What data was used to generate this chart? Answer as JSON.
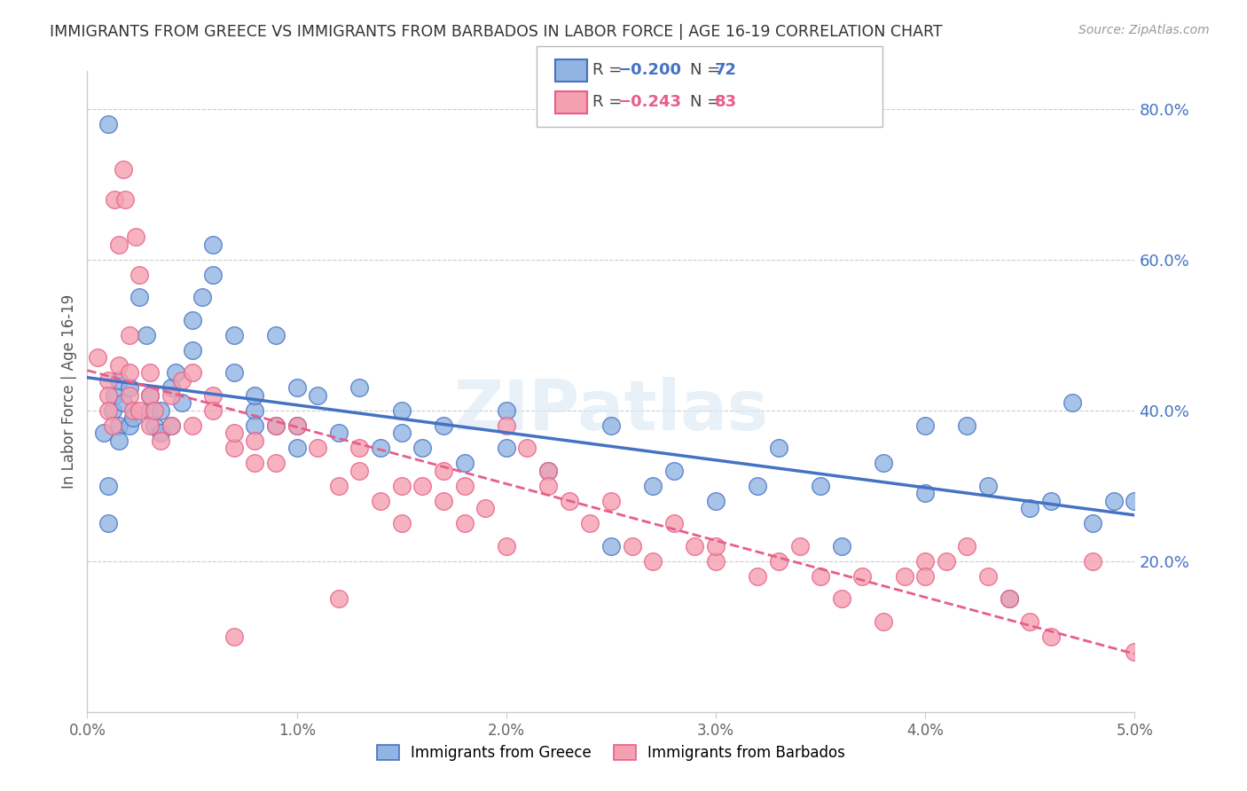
{
  "title": "IMMIGRANTS FROM GREECE VS IMMIGRANTS FROM BARBADOS IN LABOR FORCE | AGE 16-19 CORRELATION CHART",
  "source": "Source: ZipAtlas.com",
  "ylabel": "In Labor Force | Age 16-19",
  "xlim": [
    0.0,
    0.05
  ],
  "ylim": [
    0.0,
    0.85
  ],
  "xticklabels": [
    "0.0%",
    "1.0%",
    "2.0%",
    "3.0%",
    "4.0%",
    "5.0%"
  ],
  "xtick_vals": [
    0.0,
    0.01,
    0.02,
    0.03,
    0.04,
    0.05
  ],
  "yticks_right": [
    0.2,
    0.4,
    0.6,
    0.8
  ],
  "yticklabels_right": [
    "20.0%",
    "40.0%",
    "60.0%",
    "80.0%"
  ],
  "color_greece": "#92b4e3",
  "color_barbados": "#f4a0b0",
  "color_greece_line": "#4472c4",
  "color_barbados_line": "#e85d8a",
  "background_color": "#ffffff",
  "greece_x": [
    0.0008,
    0.001,
    0.001,
    0.001,
    0.0012,
    0.0013,
    0.0015,
    0.0015,
    0.0015,
    0.0017,
    0.002,
    0.002,
    0.0022,
    0.0025,
    0.0028,
    0.003,
    0.003,
    0.0032,
    0.0035,
    0.0035,
    0.004,
    0.004,
    0.0042,
    0.0045,
    0.005,
    0.005,
    0.0055,
    0.006,
    0.006,
    0.007,
    0.007,
    0.008,
    0.008,
    0.008,
    0.009,
    0.009,
    0.01,
    0.01,
    0.01,
    0.011,
    0.012,
    0.013,
    0.014,
    0.015,
    0.015,
    0.016,
    0.017,
    0.018,
    0.02,
    0.02,
    0.022,
    0.025,
    0.025,
    0.027,
    0.028,
    0.03,
    0.032,
    0.033,
    0.035,
    0.036,
    0.038,
    0.04,
    0.04,
    0.042,
    0.043,
    0.044,
    0.045,
    0.046,
    0.047,
    0.048,
    0.049,
    0.05
  ],
  "greece_y": [
    0.37,
    0.3,
    0.25,
    0.78,
    0.4,
    0.42,
    0.44,
    0.38,
    0.36,
    0.41,
    0.43,
    0.38,
    0.39,
    0.55,
    0.5,
    0.4,
    0.42,
    0.38,
    0.4,
    0.37,
    0.43,
    0.38,
    0.45,
    0.41,
    0.52,
    0.48,
    0.55,
    0.62,
    0.58,
    0.5,
    0.45,
    0.4,
    0.38,
    0.42,
    0.5,
    0.38,
    0.43,
    0.38,
    0.35,
    0.42,
    0.37,
    0.43,
    0.35,
    0.4,
    0.37,
    0.35,
    0.38,
    0.33,
    0.4,
    0.35,
    0.32,
    0.22,
    0.38,
    0.3,
    0.32,
    0.28,
    0.3,
    0.35,
    0.3,
    0.22,
    0.33,
    0.38,
    0.29,
    0.38,
    0.3,
    0.15,
    0.27,
    0.28,
    0.41,
    0.25,
    0.28,
    0.28
  ],
  "barbados_x": [
    0.0005,
    0.001,
    0.001,
    0.001,
    0.0012,
    0.0013,
    0.0015,
    0.0015,
    0.0017,
    0.0018,
    0.002,
    0.002,
    0.002,
    0.0022,
    0.0023,
    0.0025,
    0.0025,
    0.003,
    0.003,
    0.003,
    0.0032,
    0.0035,
    0.004,
    0.004,
    0.0045,
    0.005,
    0.005,
    0.006,
    0.006,
    0.007,
    0.007,
    0.008,
    0.008,
    0.009,
    0.009,
    0.01,
    0.011,
    0.012,
    0.013,
    0.013,
    0.014,
    0.015,
    0.015,
    0.016,
    0.017,
    0.017,
    0.018,
    0.019,
    0.02,
    0.02,
    0.021,
    0.022,
    0.022,
    0.023,
    0.024,
    0.025,
    0.026,
    0.027,
    0.028,
    0.029,
    0.03,
    0.03,
    0.032,
    0.033,
    0.034,
    0.035,
    0.036,
    0.037,
    0.038,
    0.039,
    0.04,
    0.04,
    0.041,
    0.042,
    0.043,
    0.044,
    0.045,
    0.046,
    0.048,
    0.05,
    0.007,
    0.012,
    0.018
  ],
  "barbados_y": [
    0.47,
    0.44,
    0.42,
    0.4,
    0.38,
    0.68,
    0.46,
    0.62,
    0.72,
    0.68,
    0.5,
    0.45,
    0.42,
    0.4,
    0.63,
    0.58,
    0.4,
    0.45,
    0.42,
    0.38,
    0.4,
    0.36,
    0.42,
    0.38,
    0.44,
    0.45,
    0.38,
    0.42,
    0.4,
    0.35,
    0.37,
    0.33,
    0.36,
    0.38,
    0.33,
    0.38,
    0.35,
    0.3,
    0.32,
    0.35,
    0.28,
    0.3,
    0.25,
    0.3,
    0.28,
    0.32,
    0.25,
    0.27,
    0.22,
    0.38,
    0.35,
    0.32,
    0.3,
    0.28,
    0.25,
    0.28,
    0.22,
    0.2,
    0.25,
    0.22,
    0.2,
    0.22,
    0.18,
    0.2,
    0.22,
    0.18,
    0.15,
    0.18,
    0.12,
    0.18,
    0.2,
    0.18,
    0.2,
    0.22,
    0.18,
    0.15,
    0.12,
    0.1,
    0.2,
    0.08,
    0.1,
    0.15,
    0.3
  ]
}
